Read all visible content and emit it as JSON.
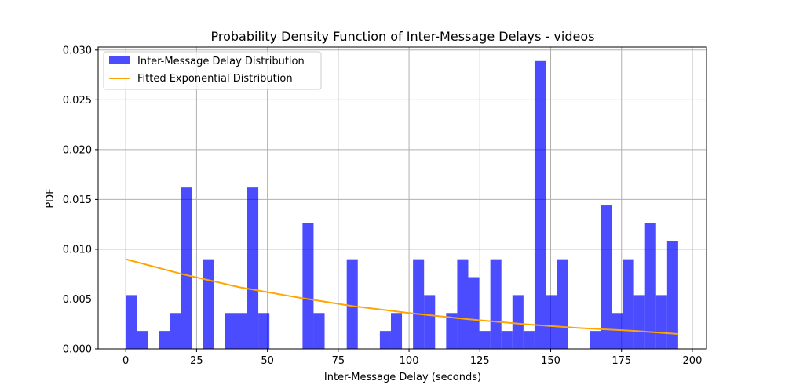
{
  "chart_data": {
    "type": "bar",
    "title": "Probability Density Function of Inter-Message Delays - videos",
    "xlabel": "Inter-Message Delay (seconds)",
    "ylabel": "PDF",
    "xlim": [
      -9.75,
      205.0
    ],
    "ylim": [
      0,
      0.0303
    ],
    "x_ticks": [
      0,
      25,
      50,
      75,
      100,
      125,
      150,
      175,
      200
    ],
    "x_tick_labels": [
      "0",
      "25",
      "50",
      "75",
      "100",
      "125",
      "150",
      "175",
      "200"
    ],
    "y_ticks": [
      0.0,
      0.005,
      0.01,
      0.015,
      0.02,
      0.025,
      0.03
    ],
    "y_tick_labels": [
      "0.000",
      "0.005",
      "0.010",
      "0.015",
      "0.020",
      "0.025",
      "0.030"
    ],
    "grid": true,
    "legend_position": "upper-left",
    "series": [
      {
        "name": "Inter-Message Delay Distribution",
        "kind": "histogram",
        "color": "#0000ff",
        "opacity": 0.7,
        "bin_start": 0,
        "bin_width": 3.9,
        "values": [
          0.0054,
          0.0018,
          0,
          0.0018,
          0.0036,
          0.0162,
          0,
          0.009,
          0,
          0.0036,
          0.0036,
          0.0162,
          0.0036,
          0,
          0,
          0,
          0.0126,
          0.0036,
          0,
          0,
          0.009,
          0,
          0,
          0.0018,
          0.0036,
          0,
          0.009,
          0.0054,
          0,
          0.0036,
          0.009,
          0.0072,
          0.0018,
          0.009,
          0.0018,
          0.0054,
          0.0018,
          0.0289,
          0.0054,
          0.009,
          0,
          0,
          0.0018,
          0.0144,
          0.0036,
          0.009,
          0.0054,
          0.0126,
          0.0054,
          0.0108
        ]
      },
      {
        "name": "Fitted Exponential Distribution",
        "kind": "line",
        "color": "#ffa500",
        "x": [
          0,
          20,
          40,
          60,
          80,
          100,
          120,
          140,
          160,
          180,
          195
        ],
        "values": [
          0.009,
          0.0075,
          0.0062,
          0.0052,
          0.0043,
          0.0036,
          0.003,
          0.0025,
          0.0021,
          0.0018,
          0.0015
        ]
      }
    ]
  }
}
